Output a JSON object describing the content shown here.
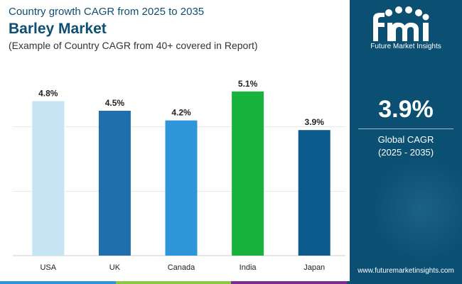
{
  "header": {
    "subtitle": "Country growth CAGR from 2025 to 2035",
    "title": "Barley Market",
    "note": "(Example of Country CAGR from 40+ covered in Report)"
  },
  "chart_data": {
    "type": "bar",
    "categories": [
      "USA",
      "UK",
      "Canada",
      "India",
      "Japan"
    ],
    "values": [
      4.8,
      4.5,
      4.2,
      5.1,
      3.9
    ],
    "value_labels": [
      "4.8%",
      "4.5%",
      "4.2%",
      "5.1%",
      "3.9%"
    ],
    "colors": [
      "#c5e3f2",
      "#1f6fad",
      "#2f95d9",
      "#18b33d",
      "#0b5a8b"
    ],
    "unit": "%",
    "ylim": [
      0,
      6
    ],
    "grid": true,
    "title": "Barley Market",
    "xlabel": "",
    "ylabel": ""
  },
  "side_panel": {
    "logo_text": "Future Market Insights",
    "stat_value": "3.9%",
    "stat_label": "Global CAGR",
    "stat_period": "(2025 - 2035)",
    "website": "www.futuremarketinsights.com"
  },
  "colors": {
    "panel_bg": "#0b4f73",
    "title": "#0d4f73",
    "strip": [
      "#2f95d9",
      "#8dc63f",
      "#7b2d8e",
      "#0b4f73"
    ]
  }
}
